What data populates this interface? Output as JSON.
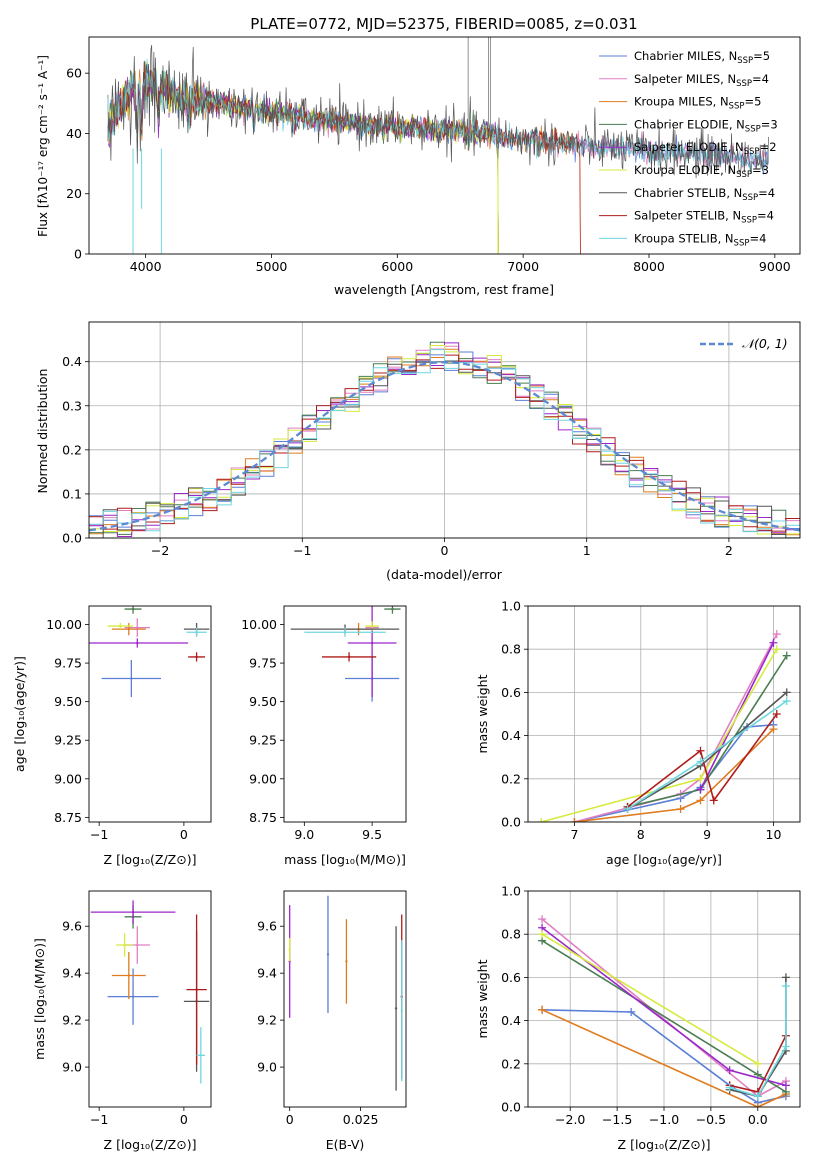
{
  "colors": {
    "chabrier_miles": "#5b7fd6",
    "salpeter_miles": "#e07fc4",
    "kroupa_miles": "#e07b1f",
    "chabrier_elodie": "#4a7d52",
    "salpeter_elodie": "#9b28c9",
    "kroupa_elodie": "#d7ea3e",
    "chabrier_stelib": "#555555",
    "salpeter_stelib": "#b01c1c",
    "kroupa_stelib": "#6fd6e0",
    "normal": "#5b8ad4"
  },
  "legend_top": [
    {
      "name": "Chabrier MILES",
      "nssp": "5",
      "color": "#5b7fd6"
    },
    {
      "name": "Salpeter MILES",
      "nssp": "4",
      "color": "#e07fc4"
    },
    {
      "name": "Kroupa MILES",
      "nssp": "5",
      "color": "#e07b1f"
    },
    {
      "name": "Chabrier ELODIE",
      "nssp": "3",
      "color": "#4a7d52"
    },
    {
      "name": "Salpeter ELODIE",
      "nssp": "2",
      "color": "#9b28c9"
    },
    {
      "name": "Kroupa ELODIE",
      "nssp": "3",
      "color": "#d7ea3e"
    },
    {
      "name": "Chabrier STELIB",
      "nssp": "4",
      "color": "#555555"
    },
    {
      "name": "Salpeter STELIB",
      "nssp": "4",
      "color": "#b01c1c"
    },
    {
      "name": "Kroupa STELIB",
      "nssp": "4",
      "color": "#6fd6e0"
    }
  ],
  "chart_data": [
    {
      "type": "line",
      "title": "PLATE=0772, MJD=52375, FIBERID=0085, z=0.031",
      "xlabel": "wavelength [Angstrom, rest frame]",
      "ylabel": "Flux [fλ10⁻¹⁷ erg cm⁻² s⁻¹ A⁻¹]",
      "xlim": [
        3550,
        9200
      ],
      "ylim": [
        0,
        72
      ],
      "xticks": [
        4000,
        5000,
        6000,
        7000,
        8000,
        9000
      ],
      "yticks": [
        0,
        20,
        40,
        60
      ],
      "continuum": [
        [
          3700,
          43
        ],
        [
          3800,
          48
        ],
        [
          3900,
          55
        ],
        [
          4000,
          57
        ],
        [
          4100,
          55
        ],
        [
          4300,
          52
        ],
        [
          4600,
          50
        ],
        [
          5000,
          47
        ],
        [
          5500,
          44
        ],
        [
          6000,
          42
        ],
        [
          6500,
          41
        ],
        [
          7000,
          38
        ],
        [
          7500,
          36
        ],
        [
          8000,
          34
        ],
        [
          8500,
          33
        ],
        [
          8900,
          31
        ]
      ],
      "legend_placement": "upper right"
    },
    {
      "type": "histogram",
      "xlabel": "(data-model)/error",
      "ylabel": "Normed distribution",
      "xlim": [
        -2.5,
        2.5
      ],
      "ylim": [
        0,
        0.49
      ],
      "xticks": [
        -2,
        -1,
        0,
        1,
        2
      ],
      "yticks": [
        0.0,
        0.1,
        0.2,
        0.3,
        0.4
      ],
      "grid": true,
      "reference_curve": {
        "name": "𝒩(0, 1)",
        "style": "dashed"
      },
      "legend_placement": "upper right"
    },
    {
      "type": "scatter",
      "xlabel": "Z [log₁₀(Z/Z⊙)]",
      "ylabel": "age  [log₁₀(age/yr)]",
      "xlim": [
        -1.12,
        0.32
      ],
      "ylim": [
        8.72,
        10.12
      ],
      "xticks": [
        -1,
        0
      ],
      "yticks": [
        8.75,
        9.0,
        9.25,
        9.5,
        9.75,
        10.0
      ],
      "points": [
        {
          "x": -0.62,
          "y": 9.65,
          "xerr": 0.35,
          "yerr": 0.12,
          "color": "#5b7fd6"
        },
        {
          "x": -0.55,
          "y": 9.98,
          "xerr": 0.15,
          "yerr": 0.06,
          "color": "#e07fc4"
        },
        {
          "x": -0.65,
          "y": 9.97,
          "xerr": 0.2,
          "yerr": 0.04,
          "color": "#e07b1f"
        },
        {
          "x": -0.6,
          "y": 10.1,
          "xerr": 0.1,
          "yerr": 0.03,
          "color": "#4a7d52"
        },
        {
          "x": -0.55,
          "y": 9.88,
          "xerr": 0.6,
          "yerr": 0.03,
          "color": "#9b28c9"
        },
        {
          "x": -0.75,
          "y": 9.99,
          "xerr": 0.15,
          "yerr": 0.02,
          "color": "#d7ea3e"
        },
        {
          "x": 0.15,
          "y": 9.97,
          "xerr": 0.15,
          "yerr": 0.04,
          "color": "#555555"
        },
        {
          "x": 0.15,
          "y": 9.79,
          "xerr": 0.1,
          "yerr": 0.03,
          "color": "#b01c1c"
        },
        {
          "x": 0.15,
          "y": 9.95,
          "xerr": 0.12,
          "yerr": 0.03,
          "color": "#6fd6e0"
        }
      ]
    },
    {
      "type": "scatter",
      "xlabel": "mass [log₁₀(M/M⊙)]",
      "ylabel": "",
      "xlim": [
        8.85,
        9.75
      ],
      "ylim": [
        8.72,
        10.12
      ],
      "xticks": [
        9.0,
        9.5
      ],
      "yticks": [
        8.75,
        9.0,
        9.25,
        9.5,
        9.75,
        10.0
      ],
      "points": [
        {
          "x": 9.5,
          "y": 9.65,
          "xerr": 0.2,
          "yerr": 0.15,
          "color": "#5b7fd6"
        },
        {
          "x": 9.5,
          "y": 9.98,
          "xerr": 0.05,
          "yerr": 0.04,
          "color": "#e07fc4"
        },
        {
          "x": 9.4,
          "y": 9.97,
          "xerr": 0.1,
          "yerr": 0.04,
          "color": "#e07b1f"
        },
        {
          "x": 9.65,
          "y": 10.1,
          "xerr": 0.06,
          "yerr": 0.03,
          "color": "#4a7d52"
        },
        {
          "x": 9.5,
          "y": 9.88,
          "xerr": 0.18,
          "yerr": 0.35,
          "color": "#9b28c9"
        },
        {
          "x": 9.5,
          "y": 9.99,
          "xerr": 0.05,
          "yerr": 0.03,
          "color": "#d7ea3e"
        },
        {
          "x": 9.3,
          "y": 9.97,
          "xerr": 0.4,
          "yerr": 0.03,
          "color": "#555555"
        },
        {
          "x": 9.33,
          "y": 9.79,
          "xerr": 0.2,
          "yerr": 0.03,
          "color": "#b01c1c"
        },
        {
          "x": 9.3,
          "y": 9.95,
          "xerr": 0.3,
          "yerr": 0.03,
          "color": "#6fd6e0"
        }
      ]
    },
    {
      "type": "line",
      "xlabel": "age  [log₁₀(age/yr)]",
      "ylabel": "mass weight",
      "xlim": [
        6.3,
        10.4
      ],
      "ylim": [
        0,
        1.0
      ],
      "xticks": [
        7,
        8,
        9,
        10
      ],
      "yticks": [
        0.0,
        0.2,
        0.4,
        0.6,
        0.8,
        1.0
      ],
      "grid": true,
      "series": [
        {
          "color": "#5b7fd6",
          "x": [
            7.0,
            8.6,
            8.9,
            9.6,
            10.0
          ],
          "y": [
            0.0,
            0.11,
            0.16,
            0.44,
            0.45
          ]
        },
        {
          "color": "#e07fc4",
          "x": [
            7.0,
            8.6,
            8.9,
            10.05
          ],
          "y": [
            0.0,
            0.13,
            0.2,
            0.87
          ]
        },
        {
          "color": "#e07b1f",
          "x": [
            7.0,
            8.6,
            8.9,
            10.0
          ],
          "y": [
            0.0,
            0.06,
            0.1,
            0.43
          ]
        },
        {
          "color": "#4a7d52",
          "x": [
            7.8,
            8.9,
            10.2
          ],
          "y": [
            0.07,
            0.15,
            0.77
          ]
        },
        {
          "color": "#9b28c9",
          "x": [
            8.9,
            10.0
          ],
          "y": [
            0.15,
            0.83
          ]
        },
        {
          "color": "#d7ea3e",
          "x": [
            6.5,
            8.9,
            10.05
          ],
          "y": [
            0.0,
            0.2,
            0.8
          ]
        },
        {
          "color": "#555555",
          "x": [
            7.8,
            8.9,
            10.2
          ],
          "y": [
            0.06,
            0.26,
            0.6
          ]
        },
        {
          "color": "#b01c1c",
          "x": [
            7.8,
            8.9,
            9.1,
            10.05
          ],
          "y": [
            0.07,
            0.33,
            0.1,
            0.5
          ]
        },
        {
          "color": "#6fd6e0",
          "x": [
            7.8,
            8.9,
            10.2
          ],
          "y": [
            0.06,
            0.28,
            0.56
          ]
        }
      ]
    },
    {
      "type": "scatter",
      "xlabel": "Z [log₁₀(Z/Z⊙)]",
      "ylabel": "mass [log₁₀(M/M⊙)]",
      "xlim": [
        -1.12,
        0.32
      ],
      "ylim": [
        8.83,
        9.75
      ],
      "xticks": [
        -1,
        0
      ],
      "yticks": [
        9.0,
        9.2,
        9.4,
        9.6
      ],
      "points": [
        {
          "x": -0.6,
          "y": 9.3,
          "xerr": 0.3,
          "yerr": 0.12,
          "color": "#5b7fd6"
        },
        {
          "x": -0.55,
          "y": 9.52,
          "xerr": 0.15,
          "yerr": 0.08,
          "color": "#e07fc4"
        },
        {
          "x": -0.65,
          "y": 9.39,
          "xerr": 0.2,
          "yerr": 0.1,
          "color": "#e07b1f"
        },
        {
          "x": -0.6,
          "y": 9.64,
          "xerr": 0.1,
          "yerr": 0.05,
          "color": "#4a7d52"
        },
        {
          "x": -0.6,
          "y": 9.66,
          "xerr": 0.5,
          "yerr": 0.05,
          "color": "#9b28c9"
        },
        {
          "x": -0.7,
          "y": 9.52,
          "xerr": 0.1,
          "yerr": 0.05,
          "color": "#d7ea3e"
        },
        {
          "x": 0.15,
          "y": 9.28,
          "xerr": 0.15,
          "yerr": 0.3,
          "color": "#555555"
        },
        {
          "x": 0.15,
          "y": 9.33,
          "xerr": 0.12,
          "yerr": 0.32,
          "color": "#b01c1c"
        },
        {
          "x": 0.2,
          "y": 9.05,
          "xerr": 0.05,
          "yerr": 0.12,
          "color": "#6fd6e0"
        }
      ]
    },
    {
      "type": "scatter",
      "xlabel": "E(B-V)",
      "ylabel": "",
      "xlim": [
        -0.002,
        0.041
      ],
      "ylim": [
        8.83,
        9.75
      ],
      "xticks": [
        0.0,
        0.025
      ],
      "yticks": [
        9.0,
        9.2,
        9.4,
        9.6
      ],
      "points": [
        {
          "x": 0.0,
          "y": 9.45,
          "yerr": 0.24,
          "color": "#9b28c9"
        },
        {
          "x": 0.0,
          "y": 9.5,
          "yerr": 0.05,
          "color": "#d7ea3e"
        },
        {
          "x": 0.0135,
          "y": 9.48,
          "yerr": 0.25,
          "color": "#5b7fd6"
        },
        {
          "x": 0.02,
          "y": 9.45,
          "yerr": 0.18,
          "color": "#e07b1f"
        },
        {
          "x": 0.0375,
          "y": 9.25,
          "yerr": 0.35,
          "color": "#555555"
        },
        {
          "x": 0.0395,
          "y": 9.3,
          "yerr": 0.35,
          "color": "#b01c1c"
        },
        {
          "x": 0.0395,
          "y": 9.24,
          "yerr": 0.3,
          "color": "#6fd6e0"
        }
      ]
    },
    {
      "type": "line",
      "xlabel": "Z [log₁₀(Z/Z⊙)]",
      "ylabel": "mass weight",
      "xlim": [
        -2.45,
        0.45
      ],
      "ylim": [
        0,
        1.0
      ],
      "xticks": [
        -2.0,
        -1.5,
        -1.0,
        -0.5,
        0.0
      ],
      "yticks": [
        0.0,
        0.2,
        0.4,
        0.6,
        0.8,
        1.0
      ],
      "grid": true,
      "series": [
        {
          "color": "#5b7fd6",
          "x": [
            -2.3,
            -1.35,
            -0.3,
            0.0,
            0.3
          ],
          "y": [
            0.45,
            0.44,
            0.1,
            0.02,
            0.05
          ]
        },
        {
          "color": "#e07fc4",
          "x": [
            -2.3,
            0.0,
            0.3
          ],
          "y": [
            0.87,
            0.05,
            0.12
          ]
        },
        {
          "color": "#e07b1f",
          "x": [
            -2.3,
            0.0,
            0.3
          ],
          "y": [
            0.45,
            0.0,
            0.06
          ]
        },
        {
          "color": "#4a7d52",
          "x": [
            -2.3,
            0.0,
            0.3
          ],
          "y": [
            0.77,
            0.15,
            0.07
          ]
        },
        {
          "color": "#9b28c9",
          "x": [
            -2.3,
            -0.3,
            0.3
          ],
          "y": [
            0.83,
            0.17,
            0.1
          ]
        },
        {
          "color": "#d7ea3e",
          "x": [
            -2.3,
            0.0
          ],
          "y": [
            0.8,
            0.2
          ]
        },
        {
          "color": "#555555",
          "x": [
            -0.3,
            0.0,
            0.3,
            0.3
          ],
          "y": [
            0.08,
            0.05,
            0.26,
            0.6
          ]
        },
        {
          "color": "#b01c1c",
          "x": [
            -0.3,
            0.0,
            0.3
          ],
          "y": [
            0.1,
            0.07,
            0.33
          ]
        },
        {
          "color": "#6fd6e0",
          "x": [
            -0.3,
            0.0,
            0.3,
            0.3
          ],
          "y": [
            0.09,
            0.05,
            0.28,
            0.56
          ]
        }
      ]
    }
  ]
}
